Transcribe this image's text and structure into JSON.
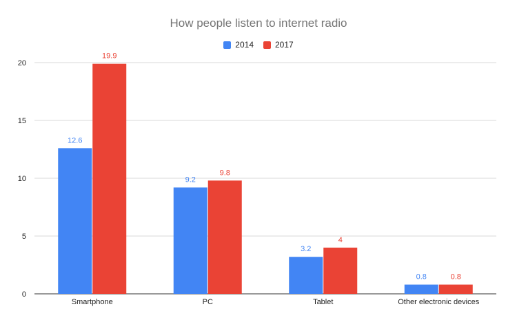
{
  "chart_data": {
    "type": "bar",
    "title": "How people listen to internet radio",
    "categories": [
      "Smartphone",
      "PC",
      "Tablet",
      "Other electronic devices"
    ],
    "series": [
      {
        "name": "2014",
        "values": [
          12.6,
          9.2,
          3.2,
          0.8
        ],
        "color": "#4285f4"
      },
      {
        "name": "2017",
        "values": [
          19.9,
          9.8,
          4,
          0.8
        ],
        "color": "#ea4335"
      }
    ],
    "ylim": [
      0,
      20
    ],
    "yticks": [
      0,
      5,
      10,
      15,
      20
    ],
    "grid": true,
    "legend_position": "top-center"
  }
}
